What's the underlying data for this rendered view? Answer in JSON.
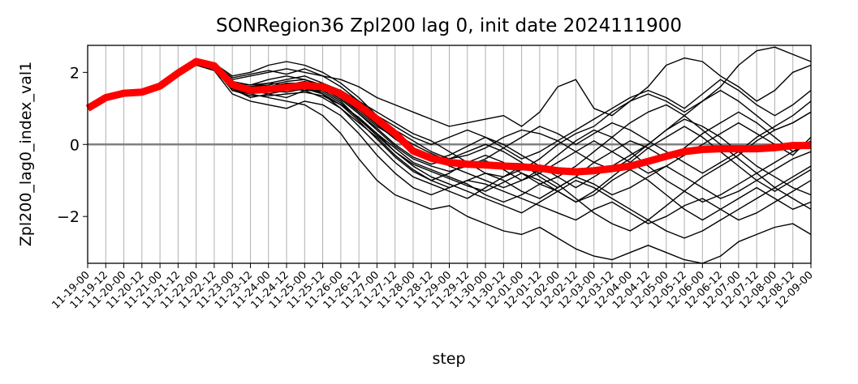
{
  "chart_data": {
    "type": "line",
    "title": "SONRegion36 Zpl200 lag 0, init date 2024111900",
    "xlabel": "step",
    "ylabel": "Zpl200_lag0_index_val1",
    "x": [
      "11-19-00",
      "11-19-12",
      "11-20-00",
      "11-20-12",
      "11-21-00",
      "11-21-12",
      "11-22-00",
      "11-22-12",
      "11-23-00",
      "11-23-12",
      "11-24-00",
      "11-24-12",
      "11-25-00",
      "11-25-12",
      "11-26-00",
      "11-26-12",
      "11-27-00",
      "11-27-12",
      "11-28-00",
      "11-28-12",
      "11-29-00",
      "11-29-12",
      "11-30-00",
      "11-30-12",
      "12-01-00",
      "12-01-12",
      "12-02-00",
      "12-02-12",
      "12-03-00",
      "12-03-12",
      "12-04-00",
      "12-04-12",
      "12-05-00",
      "12-05-12",
      "12-06-00",
      "12-06-12",
      "12-07-00",
      "12-07-12",
      "12-08-00",
      "12-08-12",
      "12-09-00"
    ],
    "yticks": [
      -2,
      0,
      2
    ],
    "ylim": [
      -3.3,
      2.75
    ],
    "grid": "x",
    "zero_line": 0,
    "series": [
      {
        "role": "mean",
        "color": "#ff0000",
        "values": [
          1.0,
          1.3,
          1.42,
          1.45,
          1.62,
          1.98,
          2.3,
          2.18,
          1.66,
          1.5,
          1.53,
          1.58,
          1.64,
          1.6,
          1.4,
          1.08,
          0.7,
          0.3,
          -0.18,
          -0.38,
          -0.5,
          -0.55,
          -0.57,
          -0.6,
          -0.62,
          -0.66,
          -0.73,
          -0.76,
          -0.73,
          -0.67,
          -0.6,
          -0.47,
          -0.33,
          -0.2,
          -0.14,
          -0.12,
          -0.12,
          -0.12,
          -0.09,
          -0.03,
          -0.03
        ]
      },
      {
        "role": "member",
        "color": "#000000",
        "values": [
          1.0,
          1.3,
          1.42,
          1.45,
          1.62,
          2.05,
          2.35,
          2.2,
          1.8,
          1.9,
          2.0,
          2.1,
          2.0,
          1.9,
          1.8,
          1.6,
          1.3,
          1.1,
          0.9,
          0.7,
          0.5,
          0.6,
          0.7,
          0.8,
          0.5,
          0.9,
          1.6,
          1.8,
          1.0,
          0.8,
          1.2,
          1.6,
          2.2,
          2.4,
          2.3,
          1.9,
          1.6,
          1.2,
          1.5,
          2.0,
          2.2
        ]
      },
      {
        "role": "member",
        "color": "#000000",
        "values": [
          1.0,
          1.3,
          1.42,
          1.45,
          1.55,
          1.95,
          2.25,
          2.1,
          1.5,
          1.4,
          1.3,
          1.2,
          1.1,
          0.8,
          0.3,
          -0.4,
          -1.0,
          -1.4,
          -1.6,
          -1.8,
          -1.7,
          -2.0,
          -2.2,
          -2.4,
          -2.5,
          -2.3,
          -2.6,
          -2.9,
          -3.1,
          -3.2,
          -3.0,
          -2.8,
          -3.0,
          -3.2,
          -3.3,
          -3.1,
          -2.7,
          -2.5,
          -2.3,
          -2.2,
          -2.5
        ]
      },
      {
        "role": "member",
        "color": "#000000",
        "values": [
          1.0,
          1.3,
          1.42,
          1.45,
          1.6,
          2.0,
          2.3,
          2.15,
          1.7,
          1.6,
          1.7,
          1.8,
          1.9,
          1.7,
          1.5,
          1.2,
          0.9,
          0.6,
          0.3,
          0.1,
          -0.2,
          -0.5,
          -0.8,
          -0.9,
          -0.7,
          -0.4,
          0.0,
          0.3,
          0.5,
          0.9,
          1.2,
          1.4,
          1.2,
          0.9,
          1.2,
          1.6,
          2.2,
          2.6,
          2.7,
          2.5,
          2.3
        ]
      },
      {
        "role": "member",
        "color": "#000000",
        "values": [
          1.0,
          1.3,
          1.42,
          1.45,
          1.65,
          2.0,
          2.2,
          2.05,
          1.4,
          1.2,
          1.1,
          1.0,
          1.2,
          1.1,
          0.8,
          0.3,
          -0.3,
          -0.8,
          -1.2,
          -1.4,
          -1.2,
          -1.0,
          -1.1,
          -1.3,
          -1.5,
          -1.7,
          -1.9,
          -2.1,
          -1.8,
          -1.6,
          -1.9,
          -2.2,
          -2.0,
          -1.7,
          -1.5,
          -1.8,
          -2.1,
          -1.9,
          -1.6,
          -1.3,
          -1.0
        ]
      },
      {
        "role": "member",
        "color": "#000000",
        "values": [
          1.0,
          1.3,
          1.42,
          1.45,
          1.6,
          2.05,
          2.3,
          2.25,
          1.9,
          2.0,
          2.2,
          2.3,
          2.2,
          2.0,
          1.7,
          1.3,
          0.8,
          0.4,
          0.1,
          -0.2,
          -0.4,
          -0.3,
          -0.1,
          0.2,
          0.4,
          0.3,
          0.1,
          -0.2,
          -0.5,
          -0.7,
          -0.4,
          0.0,
          0.4,
          0.7,
          0.5,
          0.2,
          -0.2,
          -0.6,
          -0.9,
          -1.2,
          -1.4
        ]
      },
      {
        "role": "member",
        "color": "#000000",
        "values": [
          1.0,
          1.3,
          1.42,
          1.45,
          1.58,
          1.9,
          2.2,
          2.1,
          1.6,
          1.5,
          1.4,
          1.5,
          1.6,
          1.4,
          1.0,
          0.5,
          0.0,
          -0.5,
          -0.9,
          -1.1,
          -1.3,
          -1.5,
          -1.2,
          -0.9,
          -0.6,
          -0.8,
          -1.1,
          -1.5,
          -1.9,
          -2.2,
          -2.4,
          -2.1,
          -1.7,
          -1.3,
          -0.9,
          -0.6,
          -0.3,
          0.1,
          0.4,
          0.6,
          0.9
        ]
      },
      {
        "role": "member",
        "color": "#000000",
        "values": [
          1.0,
          1.3,
          1.42,
          1.45,
          1.62,
          2.0,
          2.28,
          2.2,
          1.75,
          1.65,
          1.8,
          1.9,
          1.8,
          1.6,
          1.3,
          0.9,
          0.5,
          0.2,
          -0.1,
          -0.3,
          -0.6,
          -0.8,
          -1.0,
          -1.2,
          -1.0,
          -0.7,
          -0.3,
          0.1,
          0.4,
          0.2,
          -0.2,
          -0.6,
          -1.0,
          -1.3,
          -1.6,
          -1.4,
          -1.1,
          -0.8,
          -0.5,
          -0.2,
          0.1
        ]
      },
      {
        "role": "member",
        "color": "#000000",
        "values": [
          1.0,
          1.3,
          1.42,
          1.45,
          1.6,
          1.95,
          2.2,
          2.1,
          1.55,
          1.3,
          1.4,
          1.3,
          1.5,
          1.3,
          1.0,
          0.6,
          0.2,
          -0.3,
          -0.7,
          -1.0,
          -0.8,
          -0.5,
          -0.3,
          -0.5,
          -0.8,
          -1.1,
          -0.9,
          -0.6,
          -0.2,
          0.2,
          0.6,
          0.9,
          1.1,
          0.8,
          0.4,
          0.0,
          -0.4,
          -0.8,
          -1.2,
          -1.5,
          -1.8
        ]
      },
      {
        "role": "member",
        "color": "#000000",
        "values": [
          1.0,
          1.3,
          1.42,
          1.45,
          1.63,
          2.02,
          2.32,
          2.22,
          1.85,
          1.95,
          2.05,
          1.95,
          2.1,
          1.9,
          1.6,
          1.2,
          0.8,
          0.5,
          0.2,
          0.0,
          0.2,
          0.4,
          0.2,
          -0.1,
          -0.4,
          -0.2,
          0.1,
          0.4,
          0.7,
          1.0,
          1.3,
          1.5,
          1.3,
          1.0,
          1.4,
          1.8,
          1.5,
          1.1,
          0.8,
          1.1,
          1.5
        ]
      },
      {
        "role": "member",
        "color": "#000000",
        "values": [
          1.0,
          1.3,
          1.42,
          1.45,
          1.6,
          1.98,
          2.25,
          2.12,
          1.6,
          1.45,
          1.45,
          1.55,
          1.5,
          1.5,
          1.2,
          0.7,
          0.3,
          -0.1,
          -0.5,
          -0.7,
          -0.9,
          -1.1,
          -1.4,
          -1.6,
          -1.4,
          -1.1,
          -1.3,
          -1.6,
          -1.4,
          -1.0,
          -0.7,
          -1.0,
          -1.4,
          -1.8,
          -2.1,
          -1.8,
          -1.5,
          -1.2,
          -1.5,
          -1.8,
          -1.6
        ]
      },
      {
        "role": "member",
        "color": "#000000",
        "values": [
          1.0,
          1.3,
          1.42,
          1.45,
          1.6,
          2.0,
          2.27,
          2.15,
          1.65,
          1.55,
          1.6,
          1.7,
          1.7,
          1.55,
          1.25,
          0.85,
          0.45,
          0.0,
          -0.35,
          -0.55,
          -0.4,
          -0.2,
          0.0,
          -0.2,
          -0.5,
          -0.9,
          -1.2,
          -0.9,
          -0.5,
          -0.2,
          0.1,
          -0.1,
          -0.4,
          -0.1,
          0.3,
          0.6,
          0.9,
          0.6,
          0.2,
          -0.2,
          0.0
        ]
      },
      {
        "role": "member",
        "color": "#000000",
        "values": [
          1.0,
          1.3,
          1.42,
          1.45,
          1.6,
          1.95,
          2.22,
          2.1,
          1.5,
          1.35,
          1.35,
          1.4,
          1.45,
          1.35,
          1.1,
          0.75,
          0.3,
          -0.2,
          -0.6,
          -0.9,
          -1.1,
          -1.3,
          -1.5,
          -1.7,
          -1.9,
          -1.6,
          -1.3,
          -1.0,
          -1.2,
          -1.5,
          -1.8,
          -2.1,
          -2.4,
          -2.6,
          -2.4,
          -2.1,
          -1.8,
          -1.5,
          -1.2,
          -0.9,
          -0.6
        ]
      },
      {
        "role": "member",
        "color": "#000000",
        "values": [
          1.0,
          1.3,
          1.42,
          1.45,
          1.62,
          2.0,
          2.3,
          2.2,
          1.7,
          1.6,
          1.65,
          1.75,
          1.8,
          1.65,
          1.4,
          1.0,
          0.6,
          0.3,
          0.0,
          -0.25,
          -0.45,
          -0.6,
          -0.4,
          -0.1,
          0.2,
          0.5,
          0.3,
          0.0,
          0.3,
          0.6,
          0.4,
          0.1,
          -0.2,
          -0.5,
          -0.8,
          -0.5,
          -0.2,
          0.2,
          0.5,
          0.8,
          1.2
        ]
      },
      {
        "role": "member",
        "color": "#000000",
        "values": [
          1.0,
          1.3,
          1.42,
          1.45,
          1.6,
          1.97,
          2.24,
          2.12,
          1.6,
          1.5,
          1.5,
          1.6,
          1.55,
          1.45,
          1.15,
          0.7,
          0.25,
          -0.2,
          -0.55,
          -0.75,
          -0.95,
          -1.15,
          -1.3,
          -1.05,
          -0.8,
          -1.0,
          -1.3,
          -1.6,
          -1.3,
          -0.9,
          -0.5,
          -0.1,
          0.2,
          0.5,
          0.2,
          -0.2,
          -0.6,
          -1.0,
          -1.3,
          -1.0,
          -0.7
        ]
      },
      {
        "role": "member",
        "color": "#000000",
        "values": [
          1.0,
          1.3,
          1.42,
          1.45,
          1.6,
          2.02,
          2.3,
          2.18,
          1.7,
          1.65,
          1.7,
          1.65,
          1.75,
          1.6,
          1.3,
          0.95,
          0.55,
          0.15,
          -0.2,
          -0.45,
          -0.3,
          -0.05,
          0.2,
          0.0,
          -0.3,
          -0.6,
          -0.9,
          -1.2,
          -0.9,
          -0.6,
          -0.3,
          0.0,
          0.4,
          0.8,
          1.2,
          1.5,
          1.2,
          0.8,
          0.4,
          0.6,
          0.9
        ]
      },
      {
        "role": "member",
        "color": "#000000",
        "values": [
          1.0,
          1.3,
          1.42,
          1.45,
          1.6,
          1.96,
          2.23,
          2.1,
          1.55,
          1.4,
          1.5,
          1.45,
          1.55,
          1.4,
          1.1,
          0.65,
          0.15,
          -0.35,
          -0.75,
          -1.0,
          -1.2,
          -1.0,
          -0.8,
          -1.0,
          -1.3,
          -1.5,
          -1.2,
          -0.9,
          -1.1,
          -1.4,
          -1.2,
          -0.9,
          -0.6,
          -0.9,
          -1.2,
          -1.5,
          -1.3,
          -1.0,
          -0.7,
          -0.4,
          -0.2
        ]
      },
      {
        "role": "member",
        "color": "#000000",
        "values": [
          1.0,
          1.3,
          1.42,
          1.45,
          1.6,
          2.0,
          2.28,
          2.16,
          1.65,
          1.55,
          1.6,
          1.7,
          1.65,
          1.55,
          1.25,
          0.85,
          0.4,
          -0.05,
          -0.4,
          -0.6,
          -0.75,
          -0.6,
          -0.45,
          -0.7,
          -1.0,
          -0.8,
          -0.5,
          -0.2,
          0.1,
          -0.2,
          -0.5,
          -0.8,
          -0.6,
          -0.3,
          0.0,
          0.3,
          0.6,
          0.3,
          0.0,
          -0.3,
          0.2
        ]
      }
    ]
  }
}
